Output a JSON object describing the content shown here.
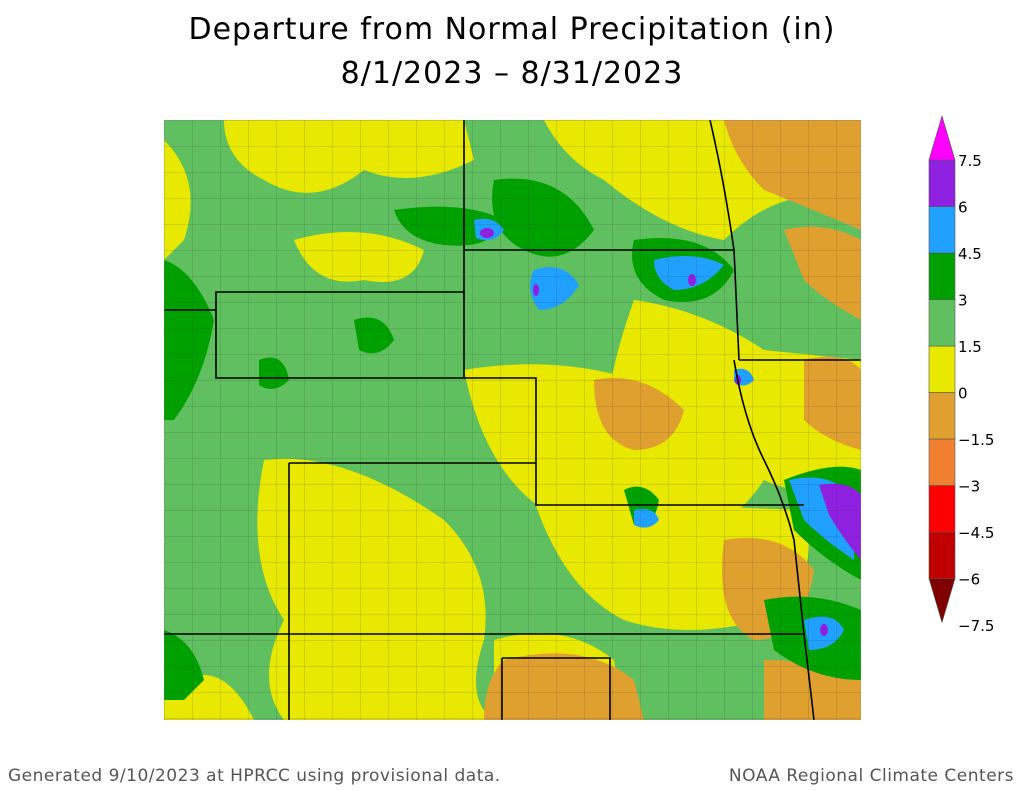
{
  "title": "Departure from Normal Precipitation (in)",
  "subtitle": "8/1/2023 – 8/31/2023",
  "legend": {
    "bands": [
      {
        "color": "#800000"
      },
      {
        "color": "#c00000"
      },
      {
        "color": "#ff0000"
      },
      {
        "color": "#f08030"
      },
      {
        "color": "#e0a030"
      },
      {
        "color": "#e8e800"
      },
      {
        "color": "#60c060"
      },
      {
        "color": "#00a000"
      },
      {
        "color": "#20a0ff"
      },
      {
        "color": "#9020e0"
      },
      {
        "color": "#ff00ff"
      }
    ],
    "labels": [
      "7.5",
      "6",
      "4.5",
      "3",
      "1.5",
      "0",
      "−1.5",
      "−3",
      "−4.5",
      "−6",
      "−7.5"
    ]
  },
  "footer": {
    "left": "Generated 9/10/2023 at HPRCC using provisional data.",
    "right": "NOAA Regional Climate Centers"
  }
}
